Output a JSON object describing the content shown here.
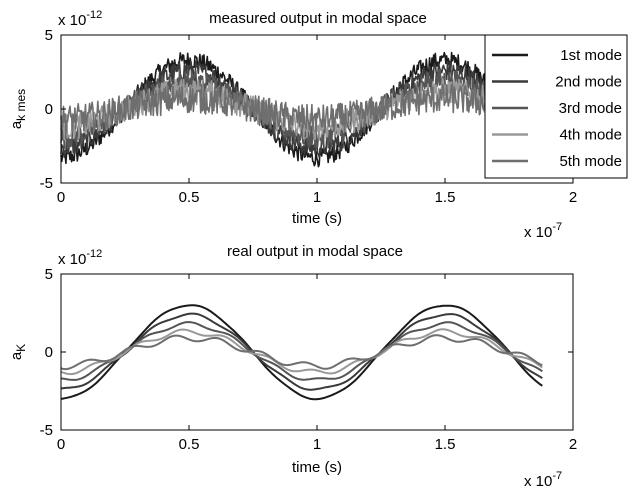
{
  "chart_data": [
    {
      "type": "line",
      "title": "measured output in modal space",
      "xlabel": "time   (s)",
      "ylabel_main": "a",
      "ylabel_sub": "k mes",
      "x_exponent_base": "x 10",
      "x_exponent_power": "-7",
      "y_exponent_base": "x 10",
      "y_exponent_power": "-12",
      "xlim": [
        0,
        2
      ],
      "ylim": [
        -5,
        5
      ],
      "xticks": [
        "0",
        "0.5",
        "1",
        "1.5",
        "2"
      ],
      "yticks": [
        "5",
        "0",
        "-5"
      ],
      "x_end": 1.66,
      "grid": false,
      "legend_position": "top-right",
      "noise_amplitude": 1.0,
      "series": [
        {
          "name": "1st mode",
          "amplitude": 3.3,
          "color": "#1a1a1a"
        },
        {
          "name": "2nd mode",
          "amplitude": 2.6,
          "color": "#3a3a3a"
        },
        {
          "name": "3rd mode",
          "amplitude": 1.9,
          "color": "#555555"
        },
        {
          "name": "4th mode",
          "amplitude": 1.2,
          "color": "#999999"
        },
        {
          "name": "5th mode",
          "amplitude": 0.7,
          "color": "#6e6e6e"
        }
      ]
    },
    {
      "type": "line",
      "title": "real output in modal space",
      "xlabel": "time   (s)",
      "ylabel_main": "a",
      "ylabel_sub": "K",
      "x_exponent_base": "x 10",
      "x_exponent_power": "-7",
      "y_exponent_base": "x 10",
      "y_exponent_power": "-12",
      "xlim": [
        0,
        2
      ],
      "ylim": [
        -5,
        5
      ],
      "xticks": [
        "0",
        "0.5",
        "1",
        "1.5",
        "2"
      ],
      "yticks": [
        "5",
        "0",
        "-5"
      ],
      "x_end": 1.88,
      "grid": false,
      "series": [
        {
          "amplitude": 3.0,
          "color": "#1a1a1a"
        },
        {
          "amplitude": 2.4,
          "color": "#3a3a3a"
        },
        {
          "amplitude": 1.8,
          "color": "#555555"
        },
        {
          "amplitude": 1.3,
          "color": "#999999"
        },
        {
          "amplitude": 0.9,
          "color": "#6e6e6e"
        }
      ]
    }
  ]
}
